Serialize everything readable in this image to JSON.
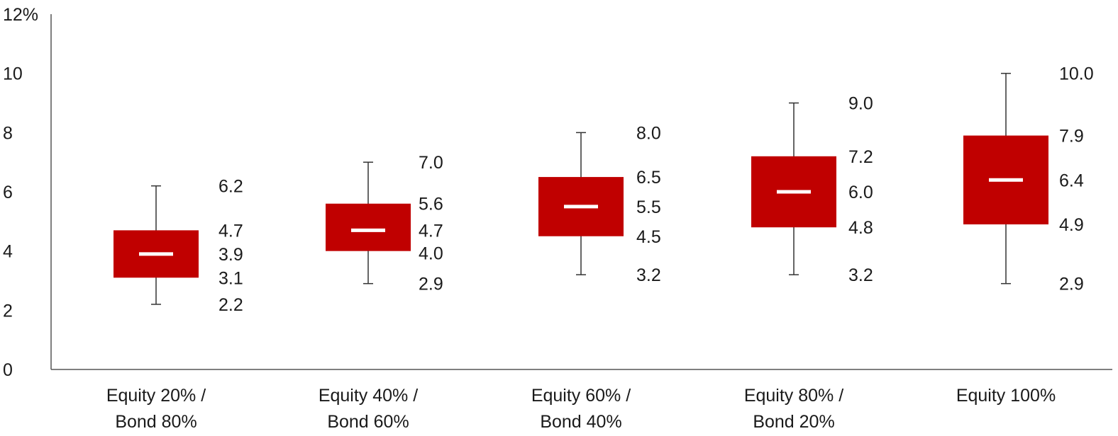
{
  "chart_data": {
    "type": "box",
    "y_unit_label": "12%",
    "ylim": [
      0,
      12
    ],
    "yticks": [
      0,
      2,
      4,
      6,
      8,
      10,
      12
    ],
    "ytick_labels": [
      "0",
      "2",
      "4",
      "6",
      "8",
      "10",
      "12%"
    ],
    "grid": false,
    "legend": "none",
    "colors": {
      "box": "#c00000",
      "median": "#ffffff",
      "whisker": "#333333"
    },
    "categories": [
      {
        "line1": "Equity 20% /",
        "line2": "Bond 80%",
        "min": 2.2,
        "q1": 3.1,
        "median": 3.9,
        "q3": 4.7,
        "max": 6.2,
        "labels": [
          "6.2",
          "4.7",
          "3.9",
          "3.1",
          "2.2"
        ]
      },
      {
        "line1": "Equity 40% /",
        "line2": "Bond 60%",
        "min": 2.9,
        "q1": 4.0,
        "median": 4.7,
        "q3": 5.6,
        "max": 7.0,
        "labels": [
          "7.0",
          "5.6",
          "4.7",
          "4.0",
          "2.9"
        ]
      },
      {
        "line1": "Equity 60% /",
        "line2": "Bond 40%",
        "min": 3.2,
        "q1": 4.5,
        "median": 5.5,
        "q3": 6.5,
        "max": 8.0,
        "labels": [
          "8.0",
          "6.5",
          "5.5",
          "4.5",
          "3.2"
        ]
      },
      {
        "line1": "Equity 80% /",
        "line2": "Bond 20%",
        "min": 3.2,
        "q1": 4.8,
        "median": 6.0,
        "q3": 7.2,
        "max": 9.0,
        "labels": [
          "9.0",
          "7.2",
          "6.0",
          "4.8",
          "3.2"
        ]
      },
      {
        "line1": "Equity 100%",
        "line2": "",
        "min": 2.9,
        "q1": 4.9,
        "median": 6.4,
        "q3": 7.9,
        "max": 10.0,
        "labels": [
          "10.0",
          "7.9",
          "6.4",
          "4.9",
          "2.9"
        ]
      }
    ]
  }
}
